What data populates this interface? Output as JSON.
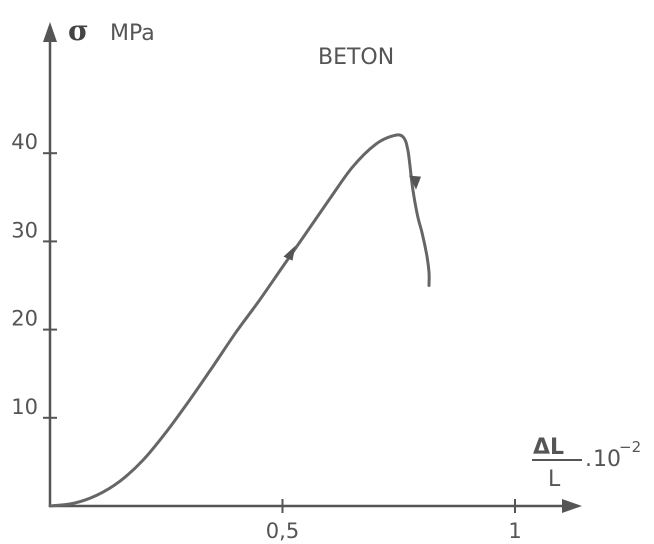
{
  "chart_data": {
    "type": "line",
    "title": "BETON",
    "ylabel": {
      "symbol": "σ",
      "unit": "MPa"
    },
    "xlabel": {
      "numerator": "ΔL",
      "denominator": "L",
      "multiplier": "10",
      "exponent": "−2"
    },
    "xlim": [
      0,
      1.1
    ],
    "ylim": [
      0,
      48
    ],
    "x_ticks": [
      {
        "value": 0.5,
        "label": "0,5"
      },
      {
        "value": 1,
        "label": "1"
      }
    ],
    "y_ticks": [
      {
        "value": 10,
        "label": "10"
      },
      {
        "value": 20,
        "label": "20"
      },
      {
        "value": 30,
        "label": "30"
      },
      {
        "value": 40,
        "label": "40"
      }
    ],
    "series": [
      {
        "x": [
          0,
          0.05,
          0.1,
          0.15,
          0.2,
          0.25,
          0.3,
          0.35,
          0.4,
          0.45,
          0.5,
          0.55,
          0.6,
          0.65,
          0.7,
          0.74,
          0.76,
          0.77,
          0.78,
          0.79,
          0.8,
          0.81,
          0.815,
          0.815
        ],
        "y": [
          0,
          0.3,
          1.2,
          2.8,
          5.2,
          8.4,
          12.0,
          15.8,
          19.7,
          23.3,
          27.1,
          30.9,
          34.7,
          38.4,
          41.0,
          42.0,
          41.8,
          40.2,
          36.0,
          33.0,
          31.0,
          28.5,
          26.5,
          25.0
        ]
      }
    ],
    "arrows_on_curve": [
      {
        "x": 0.515,
        "y": 28.5,
        "direction": "up"
      },
      {
        "x": 0.785,
        "y": 37.0,
        "direction": "down"
      }
    ],
    "grid": false,
    "colors": {
      "line": "#666666",
      "axes": "#555555",
      "text": "#555555"
    }
  }
}
